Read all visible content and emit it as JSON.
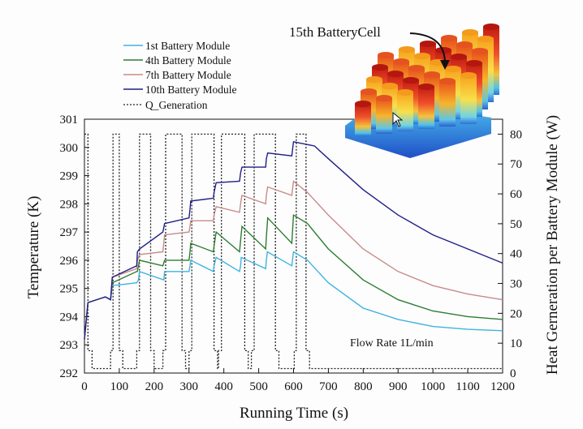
{
  "chart_data": {
    "type": "line",
    "xlabel": "Running Time (s)",
    "ylabel": "Temperature (K)",
    "y2label": "Heat Gerneration per Battery Module (W)",
    "xlim": [
      0,
      1200
    ],
    "ylim": [
      292,
      301
    ],
    "y2lim": [
      0,
      85
    ],
    "xticks": [
      "0",
      "100",
      "200",
      "300",
      "400",
      "500",
      "600",
      "700",
      "800",
      "900",
      "1000",
      "1100",
      "1200"
    ],
    "yticks": [
      "292",
      "293",
      "294",
      "295",
      "296",
      "297",
      "298",
      "299",
      "300",
      "301"
    ],
    "y2ticks": [
      "0",
      "10",
      "20",
      "30",
      "40",
      "50",
      "60",
      "70",
      "80"
    ],
    "annotation": "Flow Rate 1L/min",
    "inset_label": "15th BatteryCell",
    "colors": {
      "m1": "#3fb3e0",
      "m4": "#2e7d32",
      "m7": "#c98a8a",
      "m10": "#1f1f8a",
      "q": "#222222"
    },
    "legend": [
      "1st Battery Module",
      "4th Battery Module",
      "7th Battery Module",
      "10th Battery Module",
      "Q_Generation"
    ],
    "pulses": [
      {
        "start": 10,
        "end": 22
      },
      {
        "start": 100,
        "end": 110
      },
      {
        "start": 190,
        "end": 200
      },
      {
        "start": 280,
        "end": 290
      },
      {
        "start": 372,
        "end": 382
      },
      {
        "start": 460,
        "end": 470
      },
      {
        "start": 548,
        "end": 558
      },
      {
        "start": 636,
        "end": 646
      }
    ],
    "q_levels": {
      "high": 80,
      "low": 7.5,
      "base": 1.5,
      "end_time": 660
    },
    "q_series": {
      "name": "Q_Generation",
      "x": [
        0,
        10,
        10,
        22,
        22,
        75,
        75,
        82,
        82,
        100,
        100,
        110,
        110,
        150,
        150,
        158,
        158,
        190,
        190,
        200,
        200,
        225,
        225,
        233,
        233,
        280,
        280,
        290,
        290,
        300,
        300,
        308,
        308,
        372,
        372,
        382,
        382,
        385,
        385,
        393,
        393,
        460,
        460,
        470,
        470,
        479,
        479,
        487,
        487,
        548,
        548,
        558,
        558,
        602,
        602,
        608,
        608,
        636,
        636,
        646,
        646,
        660,
        660,
        1200
      ],
      "y": [
        80,
        80,
        7.5,
        7.5,
        1.5,
        1.5,
        7.5,
        7.5,
        80,
        80,
        7.5,
        7.5,
        1.5,
        1.5,
        7.5,
        7.5,
        80,
        80,
        7.5,
        7.5,
        1.5,
        1.5,
        7.5,
        7.5,
        80,
        80,
        7.5,
        7.5,
        1.5,
        1.5,
        7.5,
        7.5,
        80,
        80,
        7.5,
        7.5,
        1.5,
        1.5,
        7.5,
        7.5,
        80,
        80,
        7.5,
        7.5,
        1.5,
        1.5,
        7.5,
        7.5,
        80,
        80,
        7.5,
        7.5,
        1.5,
        1.5,
        7.5,
        7.5,
        80,
        80,
        7.5,
        7.5,
        1.5,
        1.5,
        1.5,
        1.5
      ]
    },
    "series": [
      {
        "name": "1st Battery Module",
        "x": [
          0,
          10,
          60,
          75,
          80,
          150,
          155,
          158,
          228,
          230,
          300,
          303,
          305,
          370,
          372,
          378,
          445,
          448,
          450,
          520,
          522,
          525,
          595,
          598,
          600,
          640,
          700,
          800,
          900,
          1000,
          1100,
          1200
        ],
        "y": [
          293.2,
          294.5,
          294.7,
          294.6,
          295.1,
          295.2,
          295.3,
          295.6,
          295.3,
          295.6,
          295.6,
          295.8,
          296.0,
          295.6,
          295.8,
          296.1,
          295.6,
          295.8,
          296.1,
          295.7,
          296.0,
          296.3,
          295.8,
          296.1,
          296.3,
          296.0,
          295.2,
          294.3,
          293.9,
          293.65,
          293.55,
          293.5
        ]
      },
      {
        "name": "4th Battery Module",
        "x": [
          0,
          10,
          60,
          75,
          80,
          150,
          152,
          158,
          225,
          230,
          300,
          303,
          305,
          370,
          372,
          378,
          445,
          448,
          452,
          520,
          522,
          526,
          595,
          598,
          600,
          640,
          700,
          800,
          900,
          1000,
          1100,
          1200
        ],
        "y": [
          293.2,
          294.5,
          294.7,
          294.6,
          295.2,
          295.6,
          295.6,
          296.0,
          295.8,
          296.0,
          296.0,
          296.3,
          296.6,
          296.3,
          296.5,
          297.0,
          296.3,
          296.7,
          297.2,
          296.4,
          296.8,
          297.5,
          296.6,
          297.2,
          297.6,
          297.3,
          296.4,
          295.3,
          294.6,
          294.2,
          294.0,
          293.9
        ]
      },
      {
        "name": "7th Battery Module",
        "x": [
          0,
          10,
          60,
          75,
          80,
          150,
          152,
          158,
          225,
          230,
          300,
          303,
          305,
          370,
          372,
          378,
          445,
          448,
          452,
          520,
          522,
          526,
          595,
          598,
          600,
          640,
          700,
          800,
          900,
          1000,
          1100,
          1200
        ],
        "y": [
          293.2,
          294.5,
          294.7,
          294.6,
          295.4,
          295.7,
          296.0,
          296.2,
          296.3,
          296.9,
          297.0,
          297.2,
          297.4,
          297.4,
          297.6,
          297.9,
          297.7,
          298.0,
          298.3,
          298.0,
          298.3,
          298.6,
          298.3,
          298.6,
          298.8,
          298.4,
          297.6,
          296.4,
          295.6,
          295.1,
          294.8,
          294.6
        ]
      },
      {
        "name": "10th Battery Module",
        "x": [
          0,
          10,
          60,
          75,
          80,
          150,
          152,
          158,
          225,
          230,
          300,
          303,
          305,
          370,
          372,
          378,
          445,
          448,
          452,
          520,
          522,
          526,
          595,
          598,
          600,
          660,
          700,
          800,
          900,
          1000,
          1100,
          1200
        ],
        "y": [
          293.2,
          294.5,
          294.7,
          294.6,
          295.4,
          295.8,
          296.3,
          296.4,
          297.0,
          297.3,
          297.5,
          297.8,
          298.1,
          298.2,
          298.4,
          298.75,
          298.8,
          299.1,
          299.3,
          299.3,
          299.6,
          299.8,
          299.7,
          300.0,
          300.2,
          300.05,
          299.6,
          298.5,
          297.6,
          296.9,
          296.4,
          295.9
        ]
      }
    ]
  }
}
